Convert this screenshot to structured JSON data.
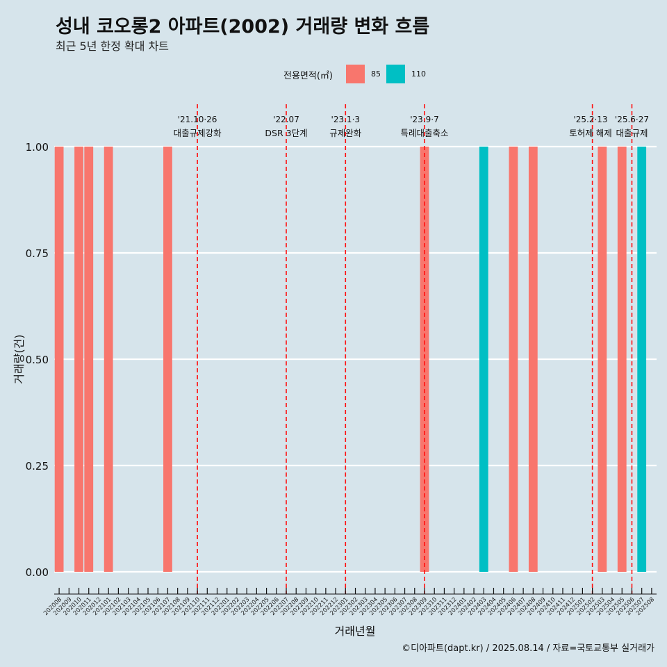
{
  "title": "성내 코오롱2 아파트(2002) 거래량 변화 흐름",
  "subtitle": "최근 5년 한정 확대 차트",
  "caption": "©디아파트(dapt.kr) / 2025.08.14 / 자료=국토교통부 실거래가",
  "legend": {
    "title": "전용면적(㎡)",
    "items": [
      {
        "label": "85",
        "color": "#f8766d"
      },
      {
        "label": "110",
        "color": "#00bfc4"
      }
    ]
  },
  "chart_data": {
    "type": "bar",
    "xlabel": "거래년월",
    "ylabel": "거래량(건)",
    "ylim": [
      0,
      1
    ],
    "yticks": [
      "0.00",
      "0.25",
      "0.50",
      "0.75",
      "1.00"
    ],
    "categories": [
      "202008",
      "202009",
      "202010",
      "202011",
      "202012",
      "202101",
      "202102",
      "202103",
      "202104",
      "202105",
      "202106",
      "202107",
      "202108",
      "202109",
      "202110",
      "202111",
      "202112",
      "202201",
      "202202",
      "202203",
      "202204",
      "202205",
      "202206",
      "202207",
      "202208",
      "202209",
      "202210",
      "202211",
      "202212",
      "202301",
      "202302",
      "202303",
      "202304",
      "202305",
      "202306",
      "202307",
      "202308",
      "202309",
      "202310",
      "202311",
      "202312",
      "202401",
      "202402",
      "202403",
      "202404",
      "202405",
      "202406",
      "202407",
      "202408",
      "202409",
      "202410",
      "202411",
      "202412",
      "202501",
      "202502",
      "202503",
      "202504",
      "202505",
      "202506",
      "202507",
      "202508"
    ],
    "series": [
      {
        "name": "85",
        "color": "#f8766d",
        "points": [
          [
            "202008",
            1
          ],
          [
            "202010",
            1
          ],
          [
            "202011",
            1
          ],
          [
            "202101",
            1
          ],
          [
            "202107",
            1
          ],
          [
            "202309",
            1
          ],
          [
            "202406",
            1
          ],
          [
            "202408",
            1
          ],
          [
            "202503",
            1
          ],
          [
            "202505",
            1
          ]
        ]
      },
      {
        "name": "110",
        "color": "#00bfc4",
        "points": [
          [
            "202403",
            1
          ],
          [
            "202507",
            1
          ]
        ]
      }
    ],
    "events": [
      {
        "date": "'21.10·26",
        "label": "대출규제강화",
        "x": "202110"
      },
      {
        "date": "'22.07",
        "label": "DSR 3단계",
        "x": "202207"
      },
      {
        "date": "'23.1·3",
        "label": "규제완화",
        "x": "202301"
      },
      {
        "date": "'23.9·7",
        "label": "특례대출축소",
        "x": "202309"
      },
      {
        "date": "'25.2·13",
        "label": "토허제 해제",
        "x": "202502"
      },
      {
        "date": "'25.6·27",
        "label": "대출규제",
        "x": "202506"
      }
    ]
  }
}
